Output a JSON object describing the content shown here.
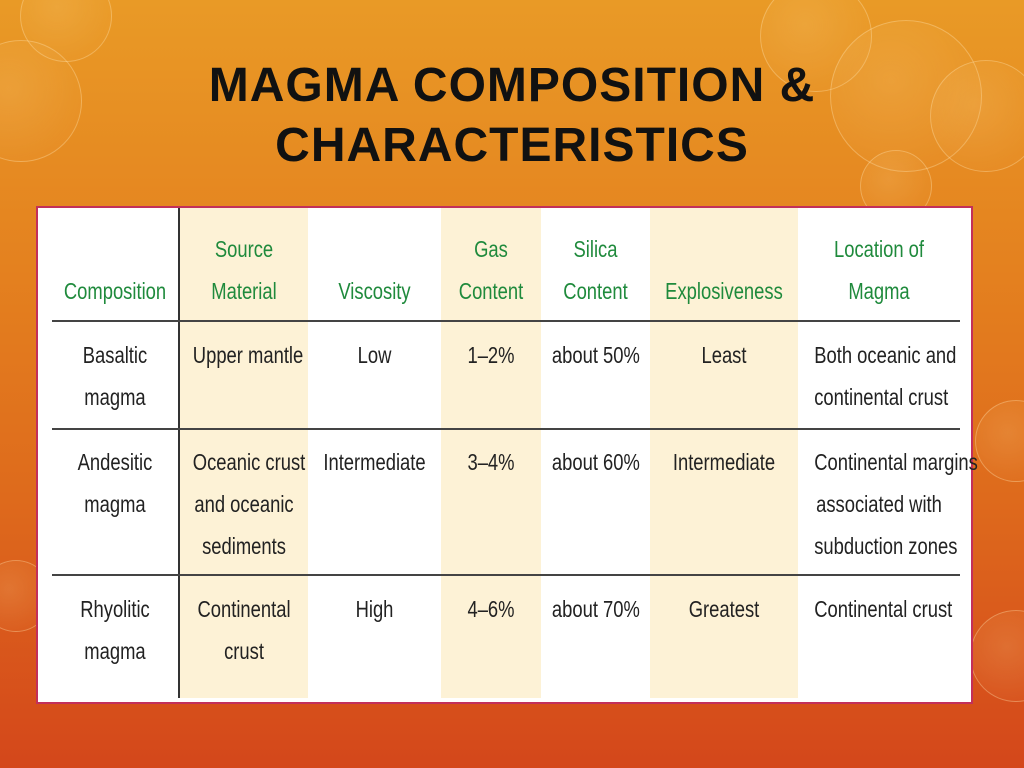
{
  "slide": {
    "title_line1": "MAGMA COMPOSITION &",
    "title_line2": "CHARACTERISTICS"
  },
  "table": {
    "headers": {
      "composition": "Composition",
      "source_1": "Source",
      "source_2": "Material",
      "viscosity": "Viscosity",
      "gas_1": "Gas",
      "gas_2": "Content",
      "silica_1": "Silica",
      "silica_2": "Content",
      "explosiveness": "Explosiveness",
      "location_1": "Location of",
      "location_2": "Magma"
    },
    "rows": [
      {
        "composition_1": "Basaltic",
        "composition_2": "magma",
        "source_1": "Upper mantle",
        "viscosity": "Low",
        "gas": "1–2%",
        "silica": "about 50%",
        "explosiveness": "Least",
        "location_1": "Both oceanic and",
        "location_2": "continental crust"
      },
      {
        "composition_1": "Andesitic",
        "composition_2": "magma",
        "source_1": "Oceanic crust",
        "source_2": "and oceanic",
        "source_3": "sediments",
        "viscosity": "Intermediate",
        "gas": "3–4%",
        "silica": "about 60%",
        "explosiveness": "Intermediate",
        "location_1": "Continental margins",
        "location_2": "associated with",
        "location_3": "subduction zones"
      },
      {
        "composition_1": "Rhyolitic",
        "composition_2": "magma",
        "source_1": "Continental",
        "source_2": "crust",
        "viscosity": "High",
        "gas": "4–6%",
        "silica": "about 70%",
        "explosiveness": "Greatest",
        "location_1": "Continental crust"
      }
    ]
  },
  "colors": {
    "header_text": "#1f8a3c",
    "highlight_column": "#fdf2d6",
    "table_border": "#c2305a"
  }
}
